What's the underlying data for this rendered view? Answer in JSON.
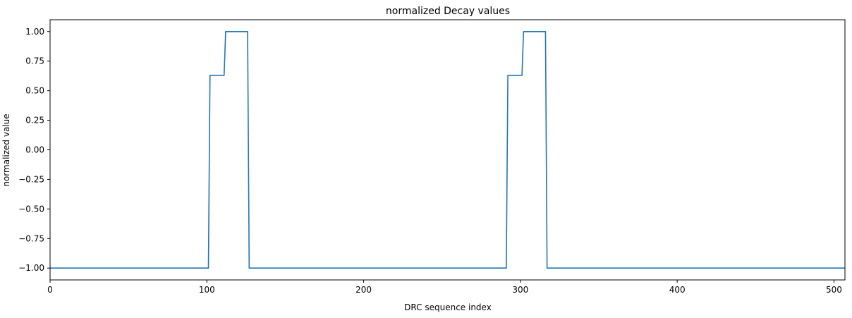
{
  "chart_data": {
    "type": "line",
    "title": "normalized Decay values",
    "xlabel": "DRC sequence index",
    "ylabel": "normalized value",
    "xlim": [
      0,
      507
    ],
    "ylim": [
      -1.1,
      1.1
    ],
    "xticks": [
      0,
      100,
      200,
      300,
      400,
      500
    ],
    "xtick_labels": [
      "0",
      "100",
      "200",
      "300",
      "400",
      "500"
    ],
    "yticks": [
      -1.0,
      -0.75,
      -0.5,
      -0.25,
      0.0,
      0.25,
      0.5,
      0.75,
      1.0
    ],
    "ytick_labels": [
      "−1.00",
      "−0.75",
      "−0.50",
      "−0.25",
      "0.00",
      "0.25",
      "0.50",
      "0.75",
      "1.00"
    ],
    "grid": false,
    "legend": "none",
    "series": [
      {
        "color": "#1f77b4",
        "x": [
          0,
          101,
          102,
          111,
          112,
          126,
          127,
          291,
          292,
          301,
          302,
          316,
          317,
          507
        ],
        "y": [
          -1.0,
          -1.0,
          0.63,
          0.63,
          1.0,
          1.0,
          -1.0,
          -1.0,
          0.63,
          0.63,
          1.0,
          1.0,
          -1.0,
          -1.0
        ]
      }
    ]
  }
}
